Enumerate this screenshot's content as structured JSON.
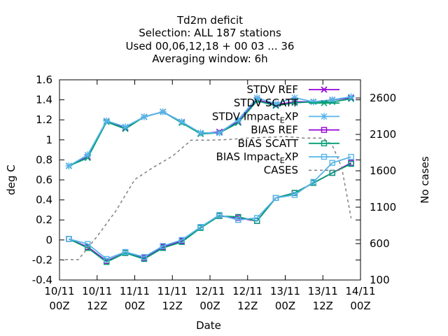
{
  "chart_data": {
    "type": "line",
    "title_lines": [
      "Td2m deficit",
      "Selection: ALL    187 stations",
      "Used  00,06,12,18 + 00 03 ... 36",
      "Averaging window:  6h"
    ],
    "xlabel": "Date",
    "ylabel": "deg C",
    "y2label": "No cases",
    "x_ticks": [
      {
        "line1": "10/11",
        "line2": "00Z"
      },
      {
        "line1": "10/11",
        "line2": "12Z"
      },
      {
        "line1": "11/11",
        "line2": "00Z"
      },
      {
        "line1": "11/11",
        "line2": "12Z"
      },
      {
        "line1": "12/11",
        "line2": "00Z"
      },
      {
        "line1": "12/11",
        "line2": "12Z"
      },
      {
        "line1": "13/11",
        "line2": "00Z"
      },
      {
        "line1": "13/11",
        "line2": "12Z"
      },
      {
        "line1": "14/11",
        "line2": "00Z"
      }
    ],
    "xlim_hours": [
      0,
      96
    ],
    "ylim": [
      -0.4,
      1.6
    ],
    "y_ticks": [
      "-0.4",
      "-0.2",
      "0",
      "0.2",
      "0.4",
      "0.6",
      "0.8",
      "1",
      "1.2",
      "1.4",
      "1.6"
    ],
    "y2lim": [
      100,
      2850
    ],
    "y2_ticks": [
      "100",
      "600",
      "1100",
      "1600",
      "2100",
      "2600"
    ],
    "legend_placement": "top-right",
    "grid": false,
    "x_hours": [
      3,
      9,
      15,
      21,
      27,
      33,
      39,
      45,
      51,
      57,
      63,
      69,
      75,
      81,
      87,
      93
    ],
    "series": [
      {
        "name": "STDV REF",
        "color": "#9400d3",
        "marker": "cross",
        "dash": false,
        "values": [
          0.74,
          0.83,
          1.19,
          1.12,
          1.23,
          1.28,
          1.18,
          1.06,
          1.08,
          1.18,
          1.4,
          1.35,
          1.38,
          1.38,
          1.4,
          1.42
        ]
      },
      {
        "name": "STDV SCATT",
        "color": "#009e73",
        "marker": "cross",
        "dash": false,
        "values": [
          0.74,
          0.82,
          1.18,
          1.11,
          1.23,
          1.28,
          1.17,
          1.06,
          1.07,
          1.17,
          1.39,
          1.34,
          1.37,
          1.38,
          1.38,
          1.41
        ]
      },
      {
        "name": "STDV Impact_EXP",
        "color": "#56b4e9",
        "marker": "star",
        "dash": false,
        "values": [
          0.74,
          0.85,
          1.19,
          1.13,
          1.23,
          1.28,
          1.18,
          1.07,
          1.07,
          1.2,
          1.42,
          1.36,
          1.42,
          1.38,
          1.4,
          1.43
        ]
      },
      {
        "name": "BIAS REF",
        "color": "#9400d3",
        "marker": "square",
        "dash": false,
        "values": [
          0.01,
          -0.07,
          -0.21,
          -0.13,
          -0.18,
          -0.07,
          -0.01,
          0.13,
          0.24,
          0.22,
          0.19,
          0.42,
          0.47,
          0.57,
          0.67,
          0.77
        ]
      },
      {
        "name": "BIAS SCATT",
        "color": "#009e73",
        "marker": "square",
        "dash": false,
        "values": [
          0.01,
          -0.08,
          -0.22,
          -0.13,
          -0.19,
          -0.08,
          -0.02,
          0.12,
          0.24,
          0.23,
          0.19,
          0.42,
          0.47,
          0.57,
          0.67,
          0.76
        ]
      },
      {
        "name": "BIAS Impact_EXP",
        "color": "#56b4e9",
        "marker": "square",
        "dash": false,
        "values": [
          0.01,
          -0.04,
          -0.19,
          -0.12,
          -0.17,
          -0.06,
          0.0,
          0.13,
          0.25,
          0.2,
          0.22,
          0.42,
          0.45,
          0.58,
          0.77,
          0.83
        ]
      },
      {
        "name": "CASES",
        "color": "#808080",
        "marker": "none",
        "dash": true,
        "axis": "y2",
        "x_hours": [
          0,
          6,
          12,
          18,
          24,
          30,
          36,
          42,
          48,
          54,
          60,
          66,
          72,
          78,
          84,
          87,
          90,
          93
        ],
        "values": [
          380,
          380,
          700,
          1050,
          1480,
          1650,
          1800,
          2020,
          2020,
          2030,
          2050,
          2060,
          2070,
          2050,
          2050,
          1950,
          1650,
          950
        ]
      }
    ]
  }
}
